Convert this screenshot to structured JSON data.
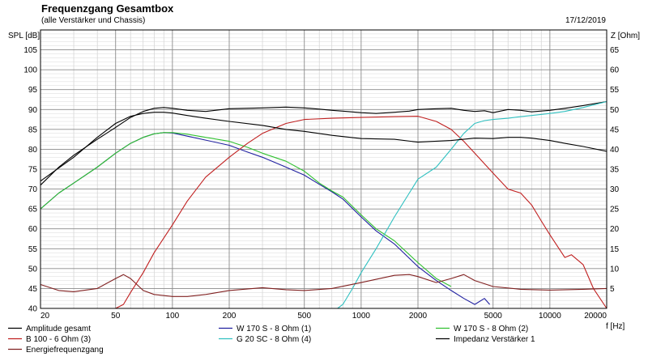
{
  "header": {
    "title": "Frequenzgang Gesamtbox",
    "subtitle": "(alle Verstärker und Chassis)",
    "date": "17/12/2019"
  },
  "chart_data": {
    "type": "line",
    "title": "Frequenzgang Gesamtbox",
    "subtitle": "(alle Verstärker und Chassis)",
    "xlabel": "f [Hz]",
    "ylabel": "SPL [dB]",
    "y2label": "Z [Ohm]",
    "xscale": "log",
    "xlim": [
      20,
      20000
    ],
    "ylim": [
      40,
      110
    ],
    "y2lim": [
      0,
      70
    ],
    "xticks": [
      20,
      50,
      100,
      200,
      500,
      1000,
      2000,
      5000,
      10000,
      20000
    ],
    "xtick_labels": [
      "20",
      "50",
      "100",
      "200",
      "500",
      "1000",
      "2000",
      "5000",
      "10000",
      "20000"
    ],
    "yticks": [
      40,
      45,
      50,
      55,
      60,
      65,
      70,
      75,
      80,
      85,
      90,
      95,
      100,
      105
    ],
    "y2ticks": [
      5,
      10,
      15,
      20,
      25,
      30,
      35,
      40,
      45,
      50,
      55,
      60,
      65
    ],
    "grid": true,
    "legend_position": "bottom",
    "series": [
      {
        "name": "Amplitude gesamt",
        "color": "#000000",
        "axis": "left",
        "x": [
          20,
          25,
          30,
          40,
          50,
          60,
          70,
          80,
          90,
          100,
          120,
          150,
          200,
          300,
          400,
          500,
          600,
          700,
          800,
          1000,
          1200,
          1500,
          1800,
          2000,
          2500,
          3000,
          3500,
          4000,
          4500,
          5000,
          6000,
          7000,
          8000,
          10000,
          12000,
          15000,
          20000
        ],
        "y": [
          71,
          75.5,
          78.5,
          82.5,
          85.5,
          88,
          89.5,
          90.3,
          90.5,
          90.3,
          89.8,
          89.5,
          90.2,
          90.4,
          90.6,
          90.4,
          90.1,
          89.8,
          89.6,
          89.2,
          89,
          89.3,
          89.6,
          90,
          90.2,
          90.3,
          89.8,
          89.5,
          89.7,
          89.2,
          90,
          89.8,
          89.4,
          89.8,
          90.3,
          91,
          92
        ]
      },
      {
        "name": "W 170 S - 8 Ohm (1)",
        "color": "#2020a0",
        "axis": "left",
        "x": [
          20,
          25,
          30,
          40,
          50,
          60,
          70,
          80,
          90,
          100,
          120,
          150,
          200,
          250,
          300,
          400,
          500,
          600,
          700,
          800,
          1000,
          1200,
          1500,
          2000,
          2500,
          3000,
          3500,
          4000,
          4500,
          4800
        ],
        "y": [
          65,
          69,
          71.5,
          75.5,
          79,
          81.5,
          83,
          83.9,
          84.2,
          84.1,
          83.3,
          82.3,
          81,
          79.3,
          78,
          75.5,
          73.5,
          71.2,
          69.3,
          67.5,
          63,
          59.5,
          56.2,
          50.5,
          47,
          44.5,
          42.5,
          41,
          42.5,
          41
        ]
      },
      {
        "name": "W 170 S - 8 Ohm (2)",
        "color": "#30c030",
        "axis": "left",
        "x": [
          20,
          25,
          30,
          40,
          50,
          60,
          70,
          80,
          90,
          100,
          120,
          150,
          200,
          250,
          300,
          400,
          500,
          600,
          700,
          800,
          1000,
          1200,
          1500,
          2000,
          2500,
          3000
        ],
        "y": [
          65,
          69,
          71.5,
          75.5,
          79,
          81.5,
          83,
          83.9,
          84.2,
          84.2,
          83.8,
          83,
          82,
          80.5,
          79,
          77,
          74.5,
          71.5,
          69.5,
          68,
          63.5,
          60,
          57,
          51.5,
          47.5,
          45.5
        ]
      },
      {
        "name": "B 100 - 6 Ohm (3)",
        "color": "#c02020",
        "axis": "left",
        "x": [
          50,
          55,
          60,
          70,
          80,
          100,
          120,
          150,
          200,
          250,
          300,
          400,
          500,
          700,
          1000,
          1500,
          2000,
          2500,
          3000,
          3500,
          4000,
          5000,
          6000,
          7000,
          8000,
          9000,
          10000,
          12000,
          13000,
          15000,
          17000,
          20000
        ],
        "y": [
          40,
          41,
          44,
          49,
          54,
          61,
          67,
          73,
          78,
          81.5,
          84,
          86.5,
          87.5,
          87.8,
          88,
          88.2,
          88.3,
          87,
          85,
          82,
          79,
          74,
          70,
          69,
          66,
          62,
          58.5,
          52.8,
          53.5,
          51,
          45,
          40
        ]
      },
      {
        "name": "G 20 SC - 8 Ohm (4)",
        "color": "#30c0c0",
        "axis": "left",
        "x": [
          750,
          800,
          900,
          1000,
          1200,
          1500,
          1800,
          2000,
          2500,
          3000,
          3500,
          4000,
          4500,
          5000,
          6000,
          7000,
          8000,
          10000,
          12000,
          15000,
          20000
        ],
        "y": [
          40,
          41,
          45,
          49,
          55,
          63,
          69,
          72.5,
          75.5,
          80,
          84,
          86.5,
          87.2,
          87.5,
          87.8,
          88.2,
          88.5,
          89,
          89.5,
          90.5,
          92
        ]
      },
      {
        "name": "Impedanz Verstärker 1",
        "color": "#000000",
        "axis": "right",
        "x": [
          20,
          30,
          40,
          50,
          60,
          70,
          80,
          90,
          100,
          120,
          150,
          200,
          300,
          400,
          500,
          700,
          1000,
          1500,
          2000,
          3000,
          4000,
          5000,
          6000,
          7000,
          8000,
          10000,
          12000,
          15000,
          20000
        ],
        "y": [
          32,
          38,
          43,
          46.5,
          48.3,
          49,
          49.3,
          49.3,
          49.1,
          48.5,
          47.8,
          47,
          46,
          45,
          44.5,
          43.5,
          42.7,
          42.5,
          41.8,
          42.2,
          42.8,
          42.7,
          43,
          43,
          42.8,
          42.2,
          41.5,
          40.7,
          39.5
        ]
      },
      {
        "name": "Energiefrequenzgang",
        "color": "#802020",
        "axis": "right",
        "x": [
          20,
          25,
          30,
          40,
          50,
          55,
          60,
          70,
          80,
          100,
          120,
          150,
          200,
          300,
          400,
          500,
          700,
          1000,
          1500,
          1800,
          2000,
          2500,
          3000,
          3500,
          4000,
          5000,
          7000,
          10000,
          15000,
          20000
        ],
        "y": [
          6,
          4.5,
          4.2,
          5,
          7.5,
          8.5,
          7.5,
          4.5,
          3.5,
          3,
          3,
          3.5,
          4.5,
          5.2,
          4.7,
          4.5,
          5,
          6.5,
          8.3,
          8.5,
          8,
          6.5,
          7.5,
          8.5,
          7,
          5.5,
          4.8,
          4.6,
          4.8,
          5
        ]
      }
    ]
  }
}
